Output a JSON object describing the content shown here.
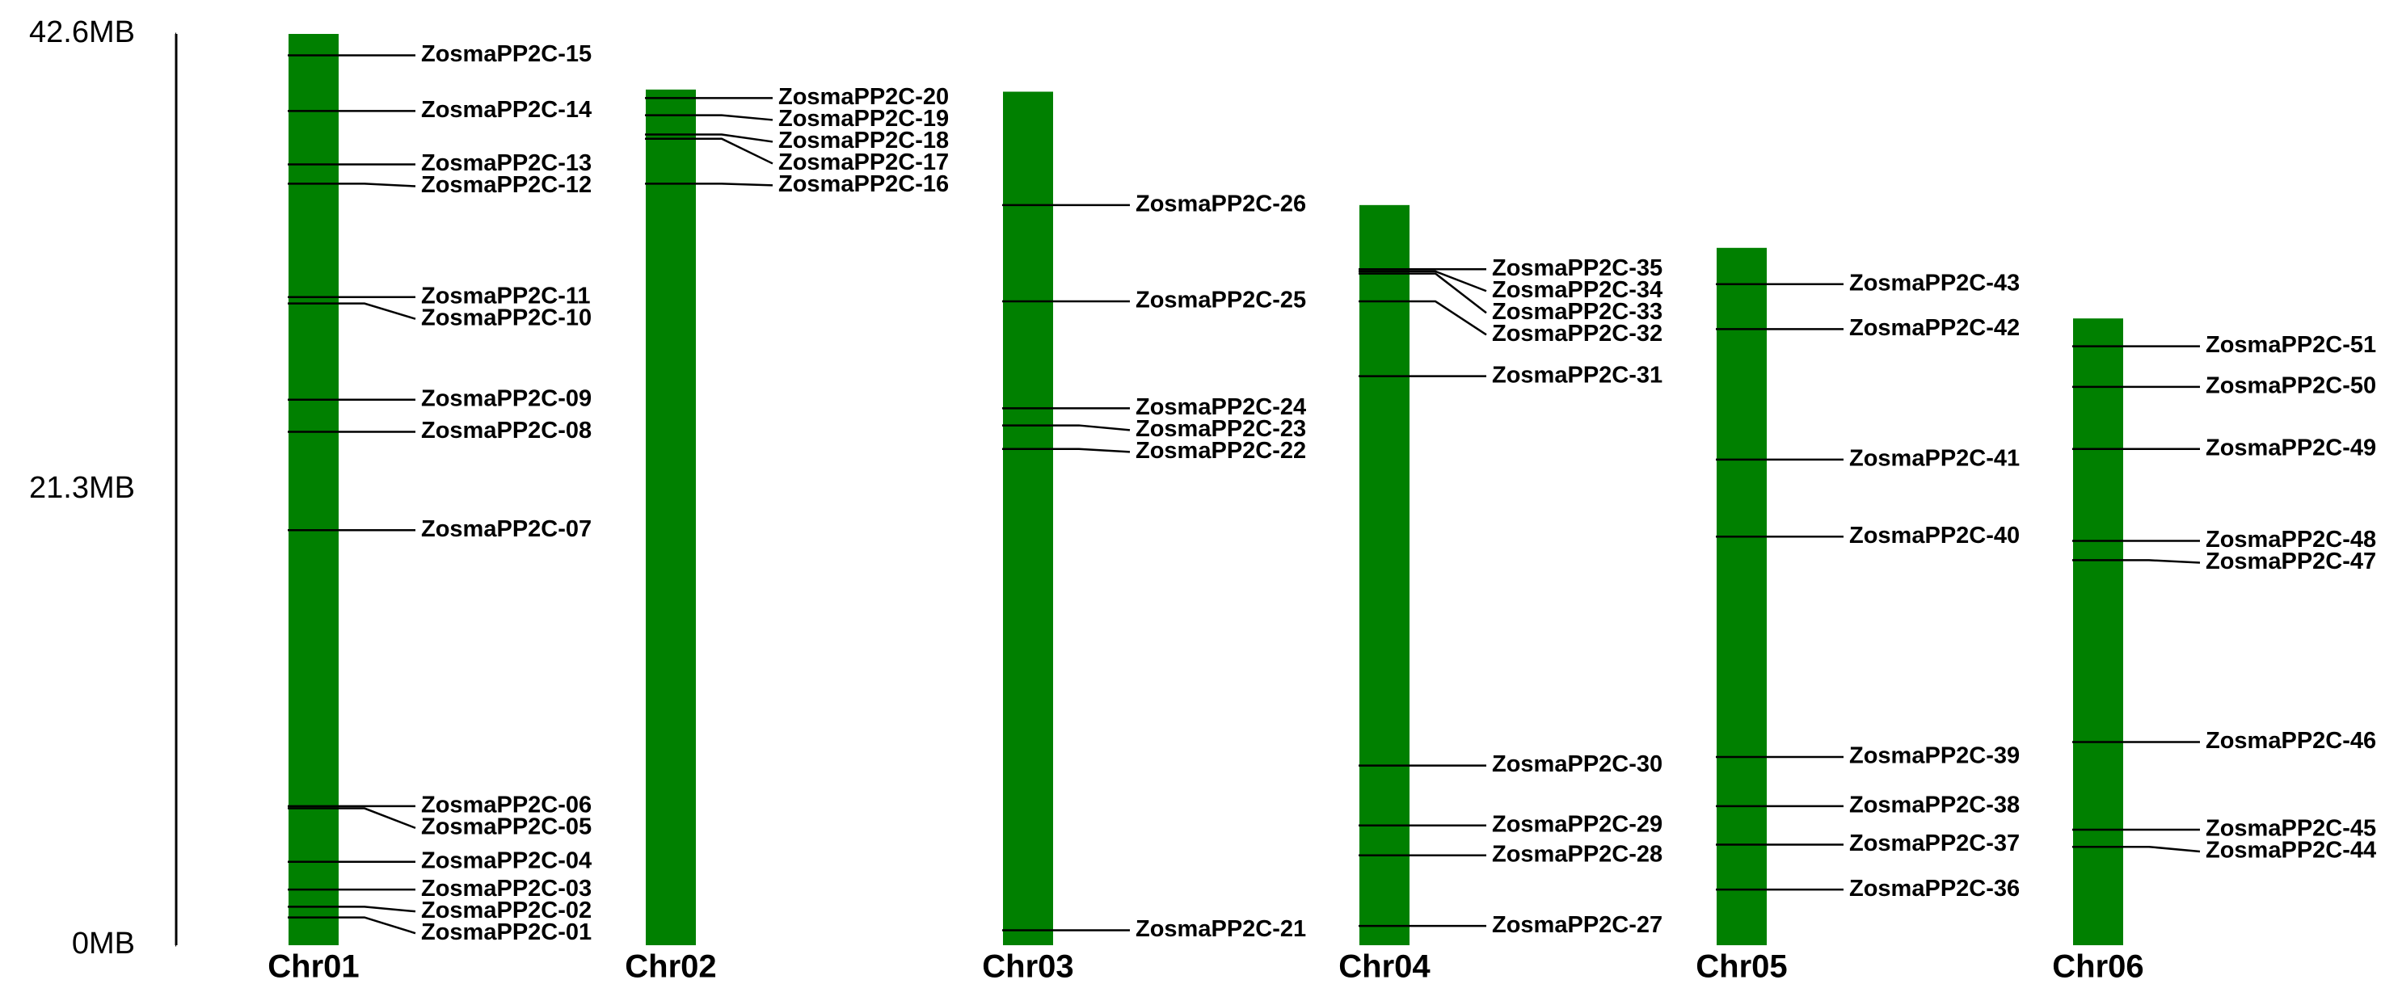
{
  "chart_data": {
    "type": "chromosome",
    "color": "#008000",
    "ylim": [
      0,
      42.6
    ],
    "yticks": [
      {
        "value": 0,
        "label": "0MB"
      },
      {
        "value": 21.3,
        "label": "21.3MB"
      },
      {
        "value": 42.6,
        "label": "42.6MB"
      }
    ],
    "chromosomes": [
      {
        "name": "Chr01",
        "length": 42.6,
        "genes": [
          {
            "name": "ZosmaPP2C-01",
            "position": 1.3
          },
          {
            "name": "ZosmaPP2C-02",
            "position": 1.8
          },
          {
            "name": "ZosmaPP2C-03",
            "position": 2.6
          },
          {
            "name": "ZosmaPP2C-04",
            "position": 3.9
          },
          {
            "name": "ZosmaPP2C-05",
            "position": 6.4
          },
          {
            "name": "ZosmaPP2C-06",
            "position": 6.5
          },
          {
            "name": "ZosmaPP2C-07",
            "position": 19.4
          },
          {
            "name": "ZosmaPP2C-08",
            "position": 24.0
          },
          {
            "name": "ZosmaPP2C-09",
            "position": 25.5
          },
          {
            "name": "ZosmaPP2C-10",
            "position": 30.0
          },
          {
            "name": "ZosmaPP2C-11",
            "position": 30.3
          },
          {
            "name": "ZosmaPP2C-12",
            "position": 35.6
          },
          {
            "name": "ZosmaPP2C-13",
            "position": 36.5
          },
          {
            "name": "ZosmaPP2C-14",
            "position": 39.0
          },
          {
            "name": "ZosmaPP2C-15",
            "position": 41.6
          }
        ]
      },
      {
        "name": "Chr02",
        "length": 40.0,
        "genes": [
          {
            "name": "ZosmaPP2C-16",
            "position": 35.6
          },
          {
            "name": "ZosmaPP2C-17",
            "position": 37.7
          },
          {
            "name": "ZosmaPP2C-18",
            "position": 37.9
          },
          {
            "name": "ZosmaPP2C-19",
            "position": 38.8
          },
          {
            "name": "ZosmaPP2C-20",
            "position": 39.6
          }
        ]
      },
      {
        "name": "Chr03",
        "length": 39.9,
        "genes": [
          {
            "name": "ZosmaPP2C-21",
            "position": 0.7
          },
          {
            "name": "ZosmaPP2C-22",
            "position": 23.2
          },
          {
            "name": "ZosmaPP2C-23",
            "position": 24.3
          },
          {
            "name": "ZosmaPP2C-24",
            "position": 25.1
          },
          {
            "name": "ZosmaPP2C-25",
            "position": 30.1
          },
          {
            "name": "ZosmaPP2C-26",
            "position": 34.6
          }
        ]
      },
      {
        "name": "Chr04",
        "length": 34.6,
        "genes": [
          {
            "name": "ZosmaPP2C-27",
            "position": 0.9
          },
          {
            "name": "ZosmaPP2C-28",
            "position": 4.2
          },
          {
            "name": "ZosmaPP2C-29",
            "position": 5.6
          },
          {
            "name": "ZosmaPP2C-30",
            "position": 8.4
          },
          {
            "name": "ZosmaPP2C-31",
            "position": 26.6
          },
          {
            "name": "ZosmaPP2C-32",
            "position": 30.1
          },
          {
            "name": "ZosmaPP2C-33",
            "position": 31.4
          },
          {
            "name": "ZosmaPP2C-34",
            "position": 31.5
          },
          {
            "name": "ZosmaPP2C-35",
            "position": 31.6
          }
        ]
      },
      {
        "name": "Chr05",
        "length": 32.6,
        "genes": [
          {
            "name": "ZosmaPP2C-36",
            "position": 2.6
          },
          {
            "name": "ZosmaPP2C-37",
            "position": 4.7
          },
          {
            "name": "ZosmaPP2C-38",
            "position": 6.5
          },
          {
            "name": "ZosmaPP2C-39",
            "position": 8.8
          },
          {
            "name": "ZosmaPP2C-40",
            "position": 19.1
          },
          {
            "name": "ZosmaPP2C-41",
            "position": 22.7
          },
          {
            "name": "ZosmaPP2C-42",
            "position": 28.8
          },
          {
            "name": "ZosmaPP2C-43",
            "position": 30.9
          }
        ]
      },
      {
        "name": "Chr06",
        "length": 29.3,
        "genes": [
          {
            "name": "ZosmaPP2C-44",
            "position": 4.6
          },
          {
            "name": "ZosmaPP2C-45",
            "position": 5.4
          },
          {
            "name": "ZosmaPP2C-46",
            "position": 9.5
          },
          {
            "name": "ZosmaPP2C-47",
            "position": 18.0
          },
          {
            "name": "ZosmaPP2C-48",
            "position": 18.9
          },
          {
            "name": "ZosmaPP2C-49",
            "position": 23.2
          },
          {
            "name": "ZosmaPP2C-50",
            "position": 26.1
          },
          {
            "name": "ZosmaPP2C-51",
            "position": 28.0
          }
        ]
      }
    ]
  }
}
